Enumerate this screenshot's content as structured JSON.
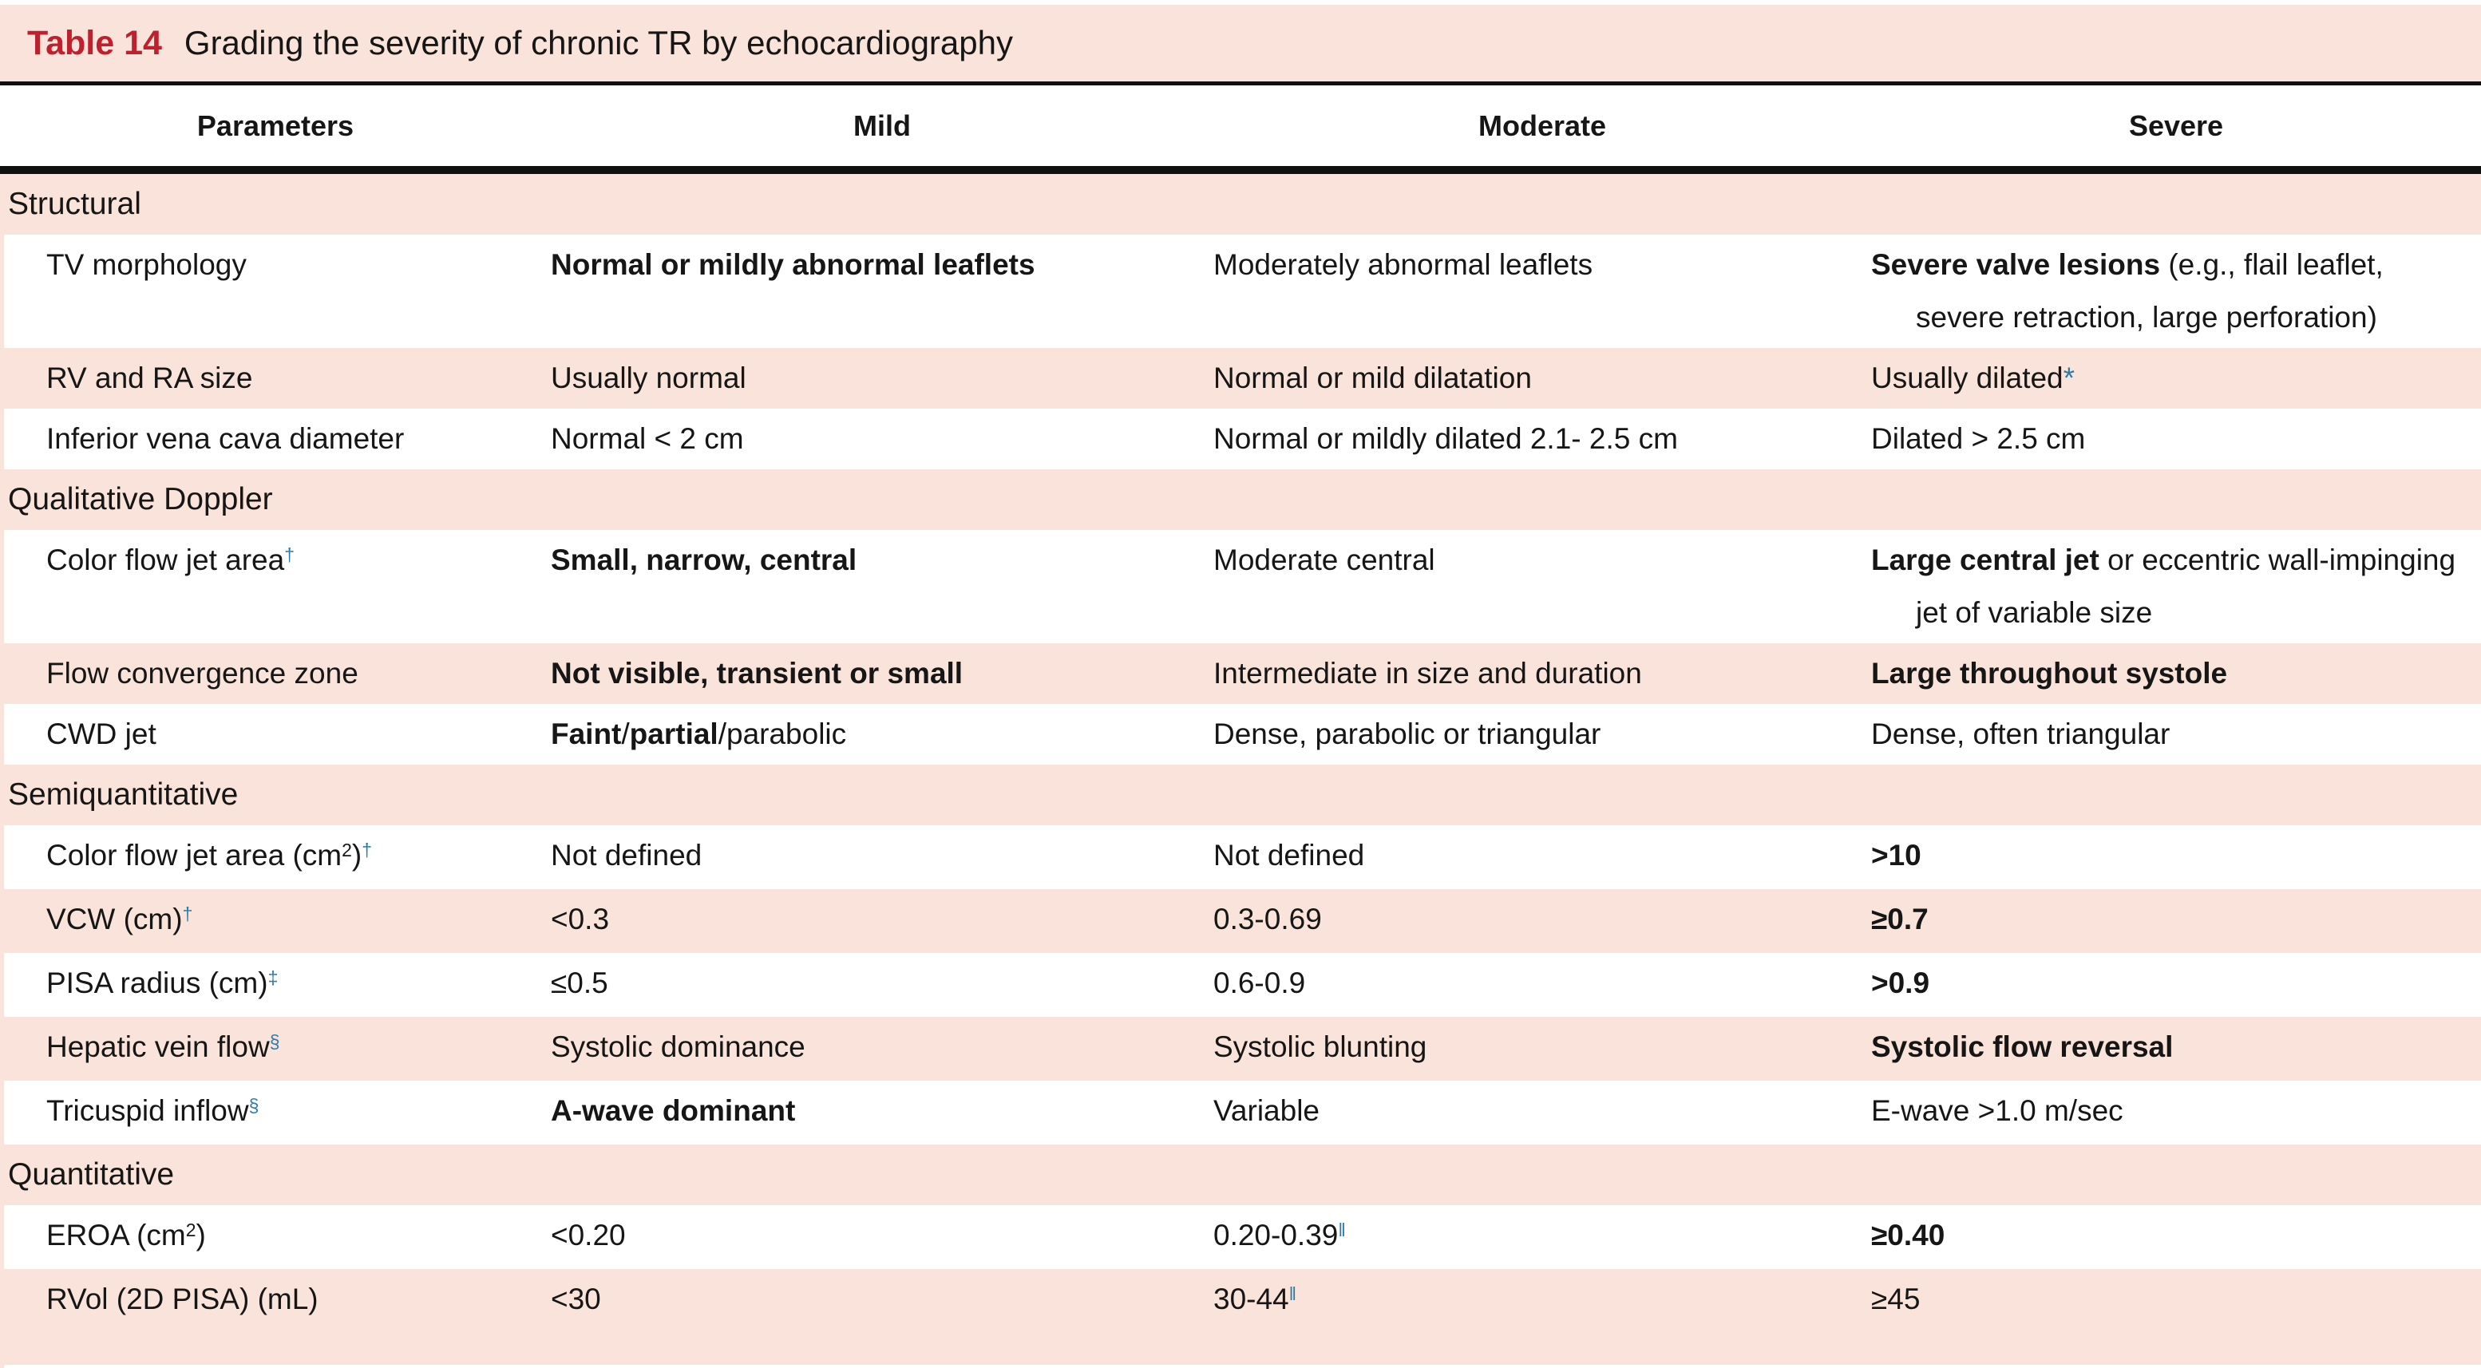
{
  "colors": {
    "pink": "#fae3da",
    "red": "#c0202e",
    "blue": "#2e7ca6",
    "text": "#161616",
    "rule": "#101010"
  },
  "title": {
    "label": "Table 14",
    "text": "Grading the severity of chronic TR by echocardiography"
  },
  "columns": [
    "Parameters",
    "Mild",
    "Moderate",
    "Severe"
  ],
  "rows": [
    {
      "kind": "section",
      "label": "Structural"
    },
    {
      "kind": "param",
      "cells": [
        [
          {
            "t": "TV morphology"
          }
        ],
        [
          {
            "t": "Normal or mildly abnormal leaflets",
            "b": 1
          }
        ],
        [
          {
            "t": "Moderately abnormal leaflets"
          }
        ],
        [
          {
            "t": "Severe valve lesions",
            "b": 1
          },
          {
            "t": " (e.g., flail leaflet, severe retraction, large perforation)"
          }
        ]
      ]
    },
    {
      "kind": "param",
      "cells": [
        [
          {
            "t": "RV and RA size"
          }
        ],
        [
          {
            "t": "Usually normal"
          }
        ],
        [
          {
            "t": "Normal or mild dilatation"
          }
        ],
        [
          {
            "t": "Usually dilated"
          },
          {
            "t": "*",
            "blue": 1
          }
        ]
      ]
    },
    {
      "kind": "param",
      "cells": [
        [
          {
            "t": "Inferior vena cava diameter"
          }
        ],
        [
          {
            "t": "Normal < 2 cm"
          }
        ],
        [
          {
            "t": "Normal or mildly dilated 2.1- 2.5 cm"
          }
        ],
        [
          {
            "t": "Dilated > 2.5 cm"
          }
        ]
      ]
    },
    {
      "kind": "section",
      "label": "Qualitative Doppler"
    },
    {
      "kind": "param",
      "cells": [
        [
          {
            "t": "Color flow jet area"
          },
          {
            "t": "†",
            "sup": 1,
            "blue": 1
          }
        ],
        [
          {
            "t": "Small, narrow, central",
            "b": 1
          }
        ],
        [
          {
            "t": "Moderate central"
          }
        ],
        [
          {
            "t": "Large central jet",
            "b": 1
          },
          {
            "t": " or eccentric wall-impinging jet of variable size"
          }
        ]
      ]
    },
    {
      "kind": "param",
      "cells": [
        [
          {
            "t": "Flow convergence zone"
          }
        ],
        [
          {
            "t": "Not visible, transient or small",
            "b": 1
          }
        ],
        [
          {
            "t": "Intermediate in size and duration"
          }
        ],
        [
          {
            "t": "Large throughout systole",
            "b": 1
          }
        ]
      ]
    },
    {
      "kind": "param",
      "cells": [
        [
          {
            "t": "CWD jet"
          }
        ],
        [
          {
            "t": "Faint",
            "b": 1
          },
          {
            "t": "/"
          },
          {
            "t": "partial",
            "b": 1
          },
          {
            "t": "/parabolic"
          }
        ],
        [
          {
            "t": "Dense, parabolic or triangular"
          }
        ],
        [
          {
            "t": "Dense, often triangular"
          }
        ]
      ]
    },
    {
      "kind": "section",
      "label": "Semiquantitative"
    },
    {
      "kind": "param",
      "cells": [
        [
          {
            "t": "Color flow jet area (cm"
          },
          {
            "t": "2",
            "sup": 1
          },
          {
            "t": ")"
          },
          {
            "t": "†",
            "sup": 1,
            "blue": 1
          }
        ],
        [
          {
            "t": "Not defined"
          }
        ],
        [
          {
            "t": "Not defined"
          }
        ],
        [
          {
            "t": ">10",
            "b": 1
          }
        ]
      ]
    },
    {
      "kind": "param",
      "cells": [
        [
          {
            "t": "VCW (cm)"
          },
          {
            "t": "†",
            "sup": 1,
            "blue": 1
          }
        ],
        [
          {
            "t": "<0.3"
          }
        ],
        [
          {
            "t": "0.3-0.69"
          }
        ],
        [
          {
            "t": "≥0.7",
            "b": 1
          }
        ]
      ]
    },
    {
      "kind": "param",
      "cells": [
        [
          {
            "t": "PISA radius (cm)"
          },
          {
            "t": "‡",
            "sup": 1,
            "blue": 1
          }
        ],
        [
          {
            "t": "≤0.5"
          }
        ],
        [
          {
            "t": "0.6-0.9"
          }
        ],
        [
          {
            "t": ">0.9",
            "b": 1
          }
        ]
      ]
    },
    {
      "kind": "param",
      "cells": [
        [
          {
            "t": "Hepatic vein flow"
          },
          {
            "t": "§",
            "sup": 1,
            "blue": 1
          }
        ],
        [
          {
            "t": "Systolic dominance"
          }
        ],
        [
          {
            "t": "Systolic blunting"
          }
        ],
        [
          {
            "t": "Systolic flow reversal",
            "b": 1
          }
        ]
      ]
    },
    {
      "kind": "param",
      "cells": [
        [
          {
            "t": "Tricuspid inflow"
          },
          {
            "t": "§",
            "sup": 1,
            "blue": 1
          }
        ],
        [
          {
            "t": "A-wave dominant",
            "b": 1
          }
        ],
        [
          {
            "t": "Variable"
          }
        ],
        [
          {
            "t": "E-wave >1.0 m/sec"
          }
        ]
      ]
    },
    {
      "kind": "section",
      "label": "Quantitative"
    },
    {
      "kind": "param",
      "cells": [
        [
          {
            "t": "EROA (cm"
          },
          {
            "t": "2",
            "sup": 1
          },
          {
            "t": ")"
          }
        ],
        [
          {
            "t": "<0.20"
          }
        ],
        [
          {
            "t": "0.20-0.39"
          },
          {
            "t": "‖",
            "sup": 1,
            "blue": 1
          }
        ],
        [
          {
            "t": "≥0.40",
            "b": 1
          }
        ]
      ]
    },
    {
      "kind": "param",
      "cells": [
        [
          {
            "t": "RVol (2D PISA) (mL)"
          }
        ],
        [
          {
            "t": "<30"
          }
        ],
        [
          {
            "t": "30-44"
          },
          {
            "t": "‖",
            "sup": 1,
            "blue": 1
          }
        ],
        [
          {
            "t": "≥45"
          }
        ]
      ]
    }
  ]
}
